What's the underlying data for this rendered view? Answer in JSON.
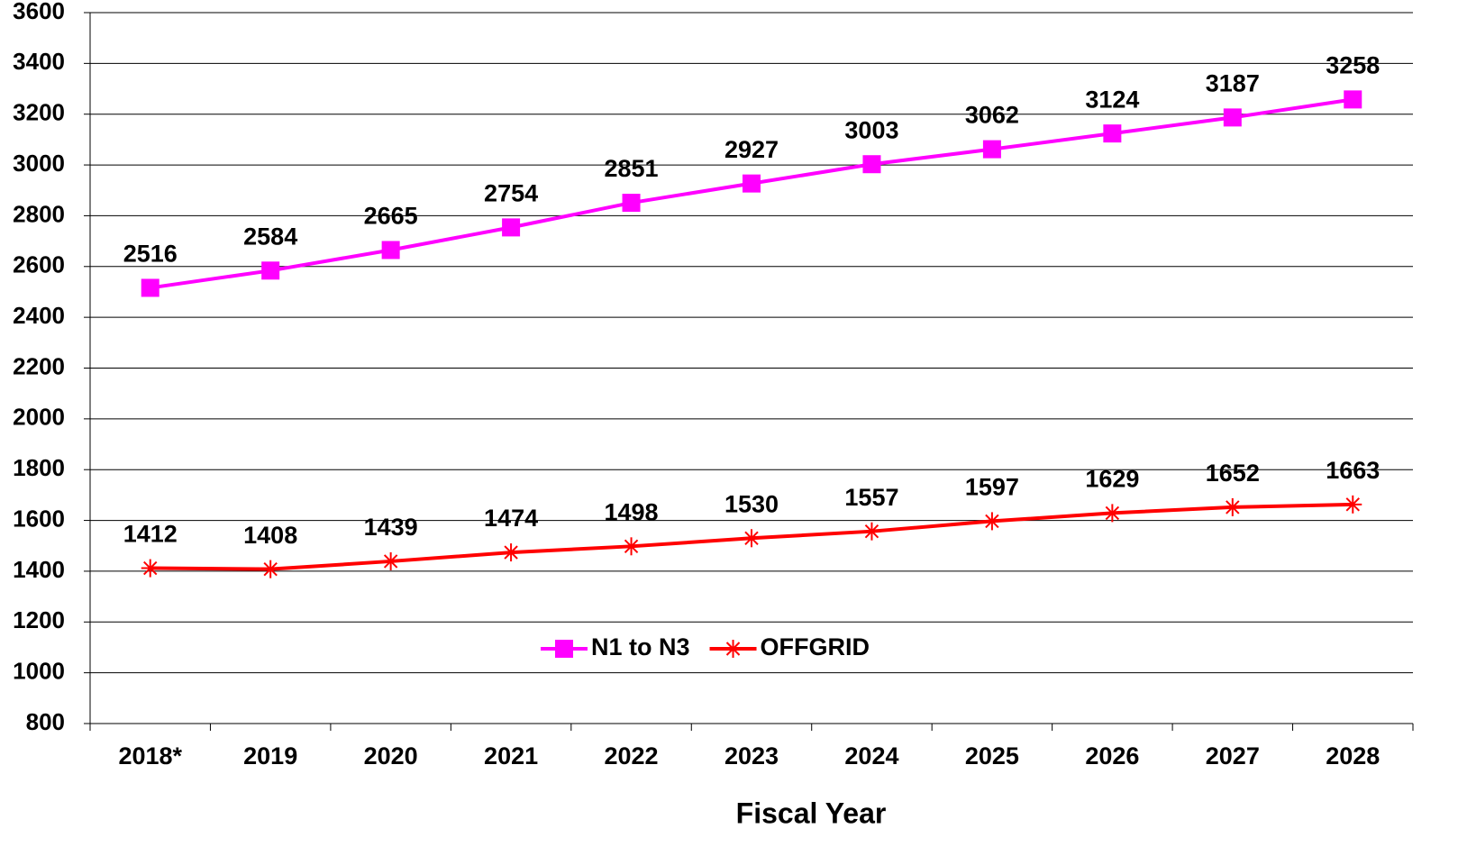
{
  "chart_data": {
    "type": "line",
    "x_label": "Fiscal Year",
    "categories": [
      "2018*",
      "2019",
      "2020",
      "2021",
      "2022",
      "2023",
      "2024",
      "2025",
      "2026",
      "2027",
      "2028"
    ],
    "series": [
      {
        "name": "N1 to N3",
        "color": "#ff00ff",
        "marker": "square",
        "values": [
          2516,
          2584,
          2665,
          2754,
          2851,
          2927,
          3003,
          3062,
          3124,
          3187,
          3258
        ]
      },
      {
        "name": "OFFGRID",
        "color": "#ff0000",
        "marker": "asterisk",
        "values": [
          1412,
          1408,
          1439,
          1474,
          1498,
          1530,
          1557,
          1597,
          1629,
          1652,
          1663
        ]
      }
    ],
    "ylim": [
      800,
      3600
    ],
    "yticks": [
      800,
      1000,
      1200,
      1400,
      1600,
      1800,
      2000,
      2200,
      2400,
      2600,
      2800,
      3000,
      3200,
      3400,
      3600
    ],
    "grid": true,
    "legend": "bottom"
  }
}
